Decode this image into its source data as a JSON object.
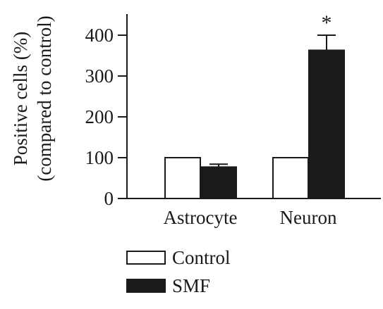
{
  "chart_data": {
    "type": "bar",
    "title": "",
    "xlabel": "",
    "ylabel": [
      "Positive cells (%)",
      "(compared to control)"
    ],
    "ylim": [
      0,
      400
    ],
    "yticks": [
      0,
      100,
      200,
      300,
      400
    ],
    "ytick_labels": [
      "0",
      "100",
      "200",
      "300",
      "400"
    ],
    "categories": [
      "Astrocyte",
      "Neuron"
    ],
    "series": [
      {
        "name": "Control",
        "values": [
          100,
          100
        ],
        "color": "#ffffff"
      },
      {
        "name": "SMF",
        "values": [
          77,
          363
        ],
        "errors": [
          7,
          37
        ],
        "color": "#1a1a1a"
      }
    ],
    "annotations": [
      {
        "text": "*",
        "category": "Neuron",
        "series": "SMF"
      }
    ],
    "legend": {
      "position": "bottom-center",
      "entries": [
        "Control",
        "SMF"
      ]
    },
    "grid": false
  }
}
